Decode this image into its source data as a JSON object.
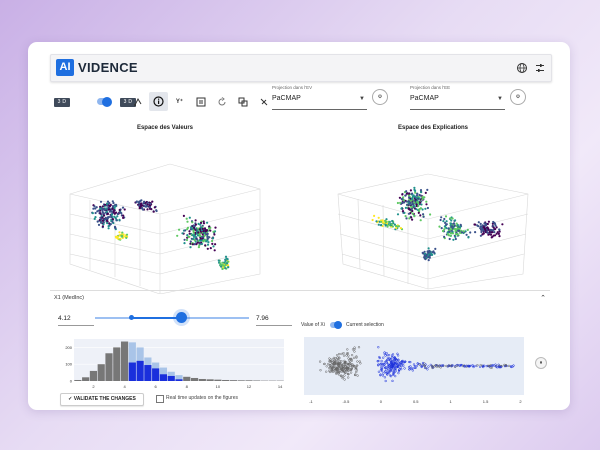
{
  "app": {
    "logo_badge": "AI",
    "logo_text": "VIDENCE",
    "globe_icon": "globe-icon",
    "settings_icon": "sliders-icon"
  },
  "toolbar": {
    "dim_left": "3 D",
    "dim_right": "3 D",
    "tools": [
      "lasso-icon",
      "info-icon",
      "y-axis-icon",
      "layers-icon",
      "refresh-icon",
      "copy-icon",
      "clear-icon"
    ],
    "projection_ev": {
      "label": "Projection dans l'EV",
      "value": "PaCMAP"
    },
    "projection_ee": {
      "label": "Projection dans l'EE",
      "value": "PaCMAP"
    },
    "settings_btn_ev": "settings-icon",
    "settings_btn_ee": "settings-icon"
  },
  "plots": [
    {
      "title": "Espace des Valeurs"
    },
    {
      "title": "Espace des Explications"
    }
  ],
  "panel": {
    "feature": "X1 (MedInc)",
    "min_value": "4.12",
    "max_value": "7.96",
    "legend_value": "Value of Xi",
    "legend_selection": "Current selection",
    "validate_label": "VALIDATE THE CHANGES",
    "realtime_label": "Real time updates on the figures",
    "colors": {
      "grey": "#777777",
      "blue": "#1a2fdc",
      "light_blue": "#a9c4e8"
    }
  },
  "chart_data": [
    {
      "type": "bar",
      "categories": [
        "1",
        "1.5",
        "2",
        "2.5",
        "3",
        "3.5",
        "4",
        "4.5",
        "5",
        "5.5",
        "6",
        "6.5",
        "7",
        "7.5",
        "8",
        "8.5",
        "9",
        "9.5",
        "10",
        "10.5",
        "11",
        "11.5",
        "12",
        "12.5",
        "13",
        "13.5",
        "14"
      ],
      "series": [
        {
          "name": "",
          "values": [
            6,
            22,
            60,
            100,
            165,
            200,
            235,
            230,
            200,
            140,
            110,
            80,
            55,
            35,
            25,
            18,
            12,
            10,
            8,
            6,
            5,
            4,
            4,
            3,
            2,
            2,
            2
          ]
        },
        {
          "name": "",
          "values": [
            0,
            0,
            0,
            0,
            0,
            0,
            0,
            110,
            120,
            95,
            75,
            40,
            30,
            10,
            0,
            0,
            0,
            0,
            0,
            0,
            0,
            0,
            0,
            0,
            0,
            0,
            0
          ]
        }
      ],
      "x_ticks": [
        "2",
        "4",
        "6",
        "8",
        "10",
        "12",
        "14"
      ],
      "y_ticks": [
        "0",
        "100",
        "200"
      ],
      "ylim": [
        0,
        250
      ]
    },
    {
      "type": "scatter",
      "x_ticks": [
        "-1",
        "-0.5",
        "0",
        "0.5",
        "1",
        "1.5",
        "2"
      ],
      "xlim": [
        -1.1,
        2.05
      ]
    }
  ]
}
